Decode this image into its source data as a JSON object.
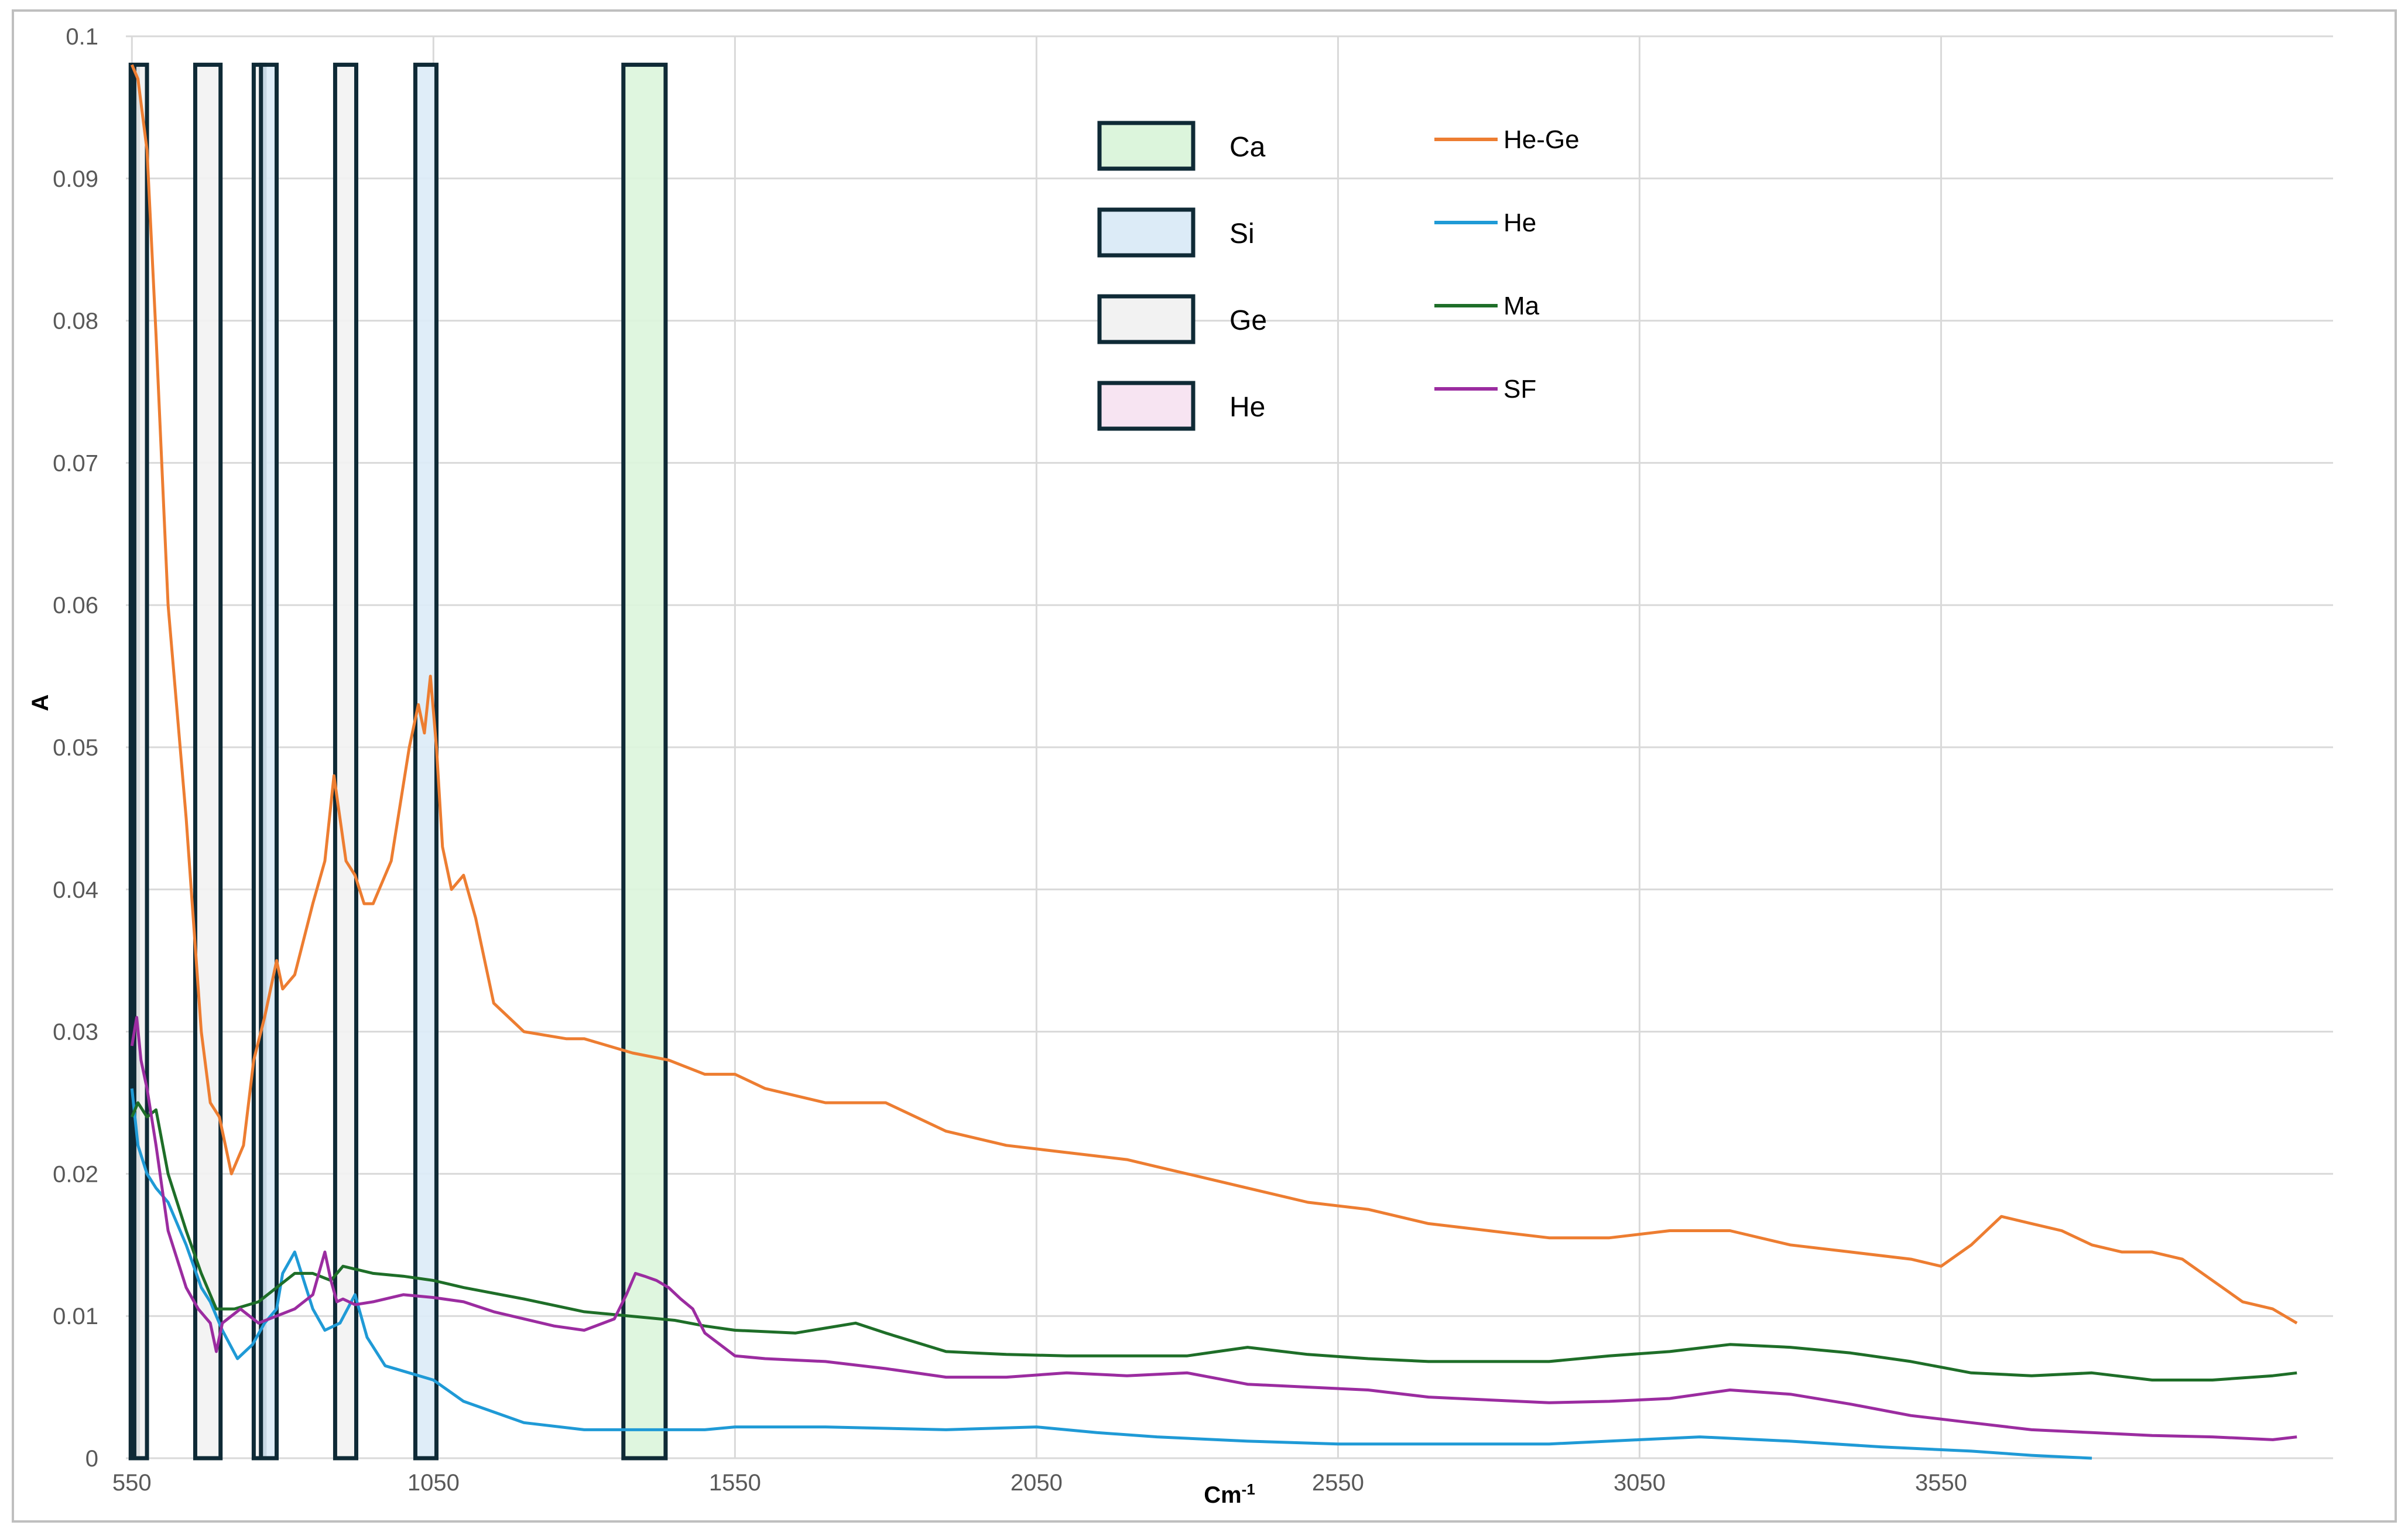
{
  "chart_data": {
    "type": "line",
    "xlabel": "Cm",
    "xlabel_sup": "-1",
    "ylabel": "A",
    "xlim": [
      540,
      4200
    ],
    "ylim": [
      0,
      0.1
    ],
    "x_ticks": [
      550,
      1050,
      1550,
      2050,
      2550,
      3050,
      3550
    ],
    "y_ticks": [
      0,
      0.01,
      0.02,
      0.03,
      0.04,
      0.05,
      0.06,
      0.07,
      0.08,
      0.09,
      0.1
    ],
    "y_tick_labels": [
      "0",
      "0.01",
      "0.02",
      "0.03",
      "0.04",
      "0.05",
      "0.06",
      "0.07",
      "0.08",
      "0.09",
      "0.1"
    ],
    "grid": true,
    "band_legend": [
      {
        "label": "Ca",
        "fill": "#dcf5dc"
      },
      {
        "label": "Si",
        "fill": "#dcebf7"
      },
      {
        "label": "Ge",
        "fill": "#f2f2f2"
      },
      {
        "label": "He",
        "fill": "#f7e4f2"
      }
    ],
    "bands": [
      {
        "group": "He",
        "x0": 548,
        "x1": 560,
        "top": 0.098
      },
      {
        "group": "Ge",
        "x0": 554,
        "x1": 575,
        "top": 0.098
      },
      {
        "group": "Ge",
        "x0": 655,
        "x1": 697,
        "top": 0.098
      },
      {
        "group": "Ge",
        "x0": 752,
        "x1": 770,
        "top": 0.098
      },
      {
        "group": "Si",
        "x0": 764,
        "x1": 790,
        "top": 0.098
      },
      {
        "group": "Ge",
        "x0": 887,
        "x1": 922,
        "top": 0.098
      },
      {
        "group": "Si",
        "x0": 1020,
        "x1": 1055,
        "top": 0.098
      },
      {
        "group": "Ca",
        "x0": 1365,
        "x1": 1435,
        "top": 0.098
      }
    ],
    "series": [
      {
        "name": "He-Ge",
        "color": "#ed7d31",
        "x": [
          550,
          560,
          575,
          590,
          610,
          640,
          665,
          680,
          695,
          705,
          715,
          735,
          752,
          770,
          780,
          790,
          800,
          820,
          850,
          870,
          885,
          895,
          905,
          920,
          935,
          950,
          980,
          1010,
          1025,
          1035,
          1045,
          1055,
          1065,
          1080,
          1100,
          1120,
          1150,
          1200,
          1270,
          1300,
          1380,
          1440,
          1500,
          1550,
          1600,
          1700,
          1800,
          1900,
          2000,
          2100,
          2200,
          2250,
          2300,
          2400,
          2500,
          2600,
          2700,
          2800,
          2900,
          3000,
          3100,
          3200,
          3300,
          3400,
          3500,
          3550,
          3600,
          3650,
          3700,
          3750,
          3800,
          3850,
          3900,
          3950,
          4000,
          4050,
          4100,
          4140
        ],
        "y": [
          0.098,
          0.097,
          0.092,
          0.079,
          0.06,
          0.045,
          0.03,
          0.025,
          0.024,
          0.022,
          0.02,
          0.022,
          0.028,
          0.031,
          0.033,
          0.035,
          0.033,
          0.034,
          0.039,
          0.042,
          0.048,
          0.045,
          0.042,
          0.041,
          0.039,
          0.039,
          0.042,
          0.05,
          0.053,
          0.051,
          0.055,
          0.05,
          0.043,
          0.04,
          0.041,
          0.038,
          0.032,
          0.03,
          0.0295,
          0.0295,
          0.0285,
          0.028,
          0.027,
          0.027,
          0.026,
          0.025,
          0.025,
          0.023,
          0.022,
          0.0215,
          0.021,
          0.0205,
          0.02,
          0.019,
          0.018,
          0.0175,
          0.0165,
          0.016,
          0.0155,
          0.0155,
          0.016,
          0.016,
          0.015,
          0.0145,
          0.014,
          0.0135,
          0.015,
          0.017,
          0.0165,
          0.016,
          0.015,
          0.0145,
          0.0145,
          0.014,
          0.0125,
          0.011,
          0.0105,
          0.0095
        ]
      },
      {
        "name": "He",
        "color": "#1f9ad6",
        "x": [
          550,
          560,
          575,
          590,
          610,
          640,
          665,
          680,
          700,
          725,
          750,
          770,
          790,
          800,
          820,
          850,
          870,
          895,
          920,
          940,
          970,
          1010,
          1050,
          1100,
          1200,
          1300,
          1400,
          1500,
          1550,
          1700,
          1900,
          2050,
          2150,
          2250,
          2400,
          2550,
          2700,
          2900,
          3050,
          3150,
          3300,
          3450,
          3600,
          3700,
          3750,
          3800
        ],
        "y": [
          0.026,
          0.022,
          0.02,
          0.019,
          0.018,
          0.015,
          0.012,
          0.011,
          0.009,
          0.007,
          0.008,
          0.0095,
          0.0105,
          0.013,
          0.0145,
          0.0105,
          0.009,
          0.0095,
          0.0115,
          0.0085,
          0.0065,
          0.006,
          0.0055,
          0.004,
          0.0025,
          0.002,
          0.002,
          0.002,
          0.0022,
          0.0022,
          0.002,
          0.0022,
          0.0018,
          0.0015,
          0.0012,
          0.001,
          0.001,
          0.001,
          0.0013,
          0.0015,
          0.0012,
          0.0008,
          0.0005,
          0.0002,
          0.0001,
          0.0
        ]
      },
      {
        "name": "Ma",
        "color": "#1e6e28",
        "x": [
          550,
          560,
          575,
          590,
          610,
          640,
          665,
          690,
          720,
          760,
          790,
          820,
          850,
          880,
          900,
          950,
          1000,
          1050,
          1100,
          1200,
          1300,
          1400,
          1450,
          1500,
          1550,
          1650,
          1750,
          1800,
          1900,
          2000,
          2100,
          2200,
          2300,
          2350,
          2400,
          2500,
          2600,
          2700,
          2800,
          2900,
          3000,
          3100,
          3200,
          3300,
          3400,
          3500,
          3550,
          3600,
          3700,
          3800,
          3900,
          4000,
          4100,
          4140
        ],
        "y": [
          0.024,
          0.025,
          0.024,
          0.0245,
          0.02,
          0.016,
          0.013,
          0.0105,
          0.0105,
          0.011,
          0.012,
          0.013,
          0.013,
          0.0125,
          0.0135,
          0.013,
          0.0128,
          0.0125,
          0.012,
          0.0112,
          0.0103,
          0.0099,
          0.0097,
          0.0093,
          0.009,
          0.0088,
          0.0095,
          0.0088,
          0.0075,
          0.0073,
          0.0072,
          0.0072,
          0.0072,
          0.0075,
          0.0078,
          0.0073,
          0.007,
          0.0068,
          0.0068,
          0.0068,
          0.0072,
          0.0075,
          0.008,
          0.0078,
          0.0074,
          0.0068,
          0.0064,
          0.006,
          0.0058,
          0.006,
          0.0055,
          0.0055,
          0.0058,
          0.006
        ]
      },
      {
        "name": "SF",
        "color": "#9b2ca0",
        "x": [
          550,
          558,
          565,
          575,
          590,
          610,
          640,
          660,
          680,
          690,
          700,
          730,
          760,
          790,
          820,
          850,
          870,
          880,
          890,
          900,
          920,
          950,
          1000,
          1050,
          1100,
          1150,
          1200,
          1250,
          1300,
          1350,
          1370,
          1385,
          1400,
          1420,
          1440,
          1460,
          1480,
          1500,
          1550,
          1600,
          1700,
          1800,
          1900,
          2000,
          2100,
          2200,
          2300,
          2400,
          2500,
          2600,
          2700,
          2800,
          2900,
          3000,
          3100,
          3200,
          3300,
          3400,
          3500,
          3600,
          3700,
          3800,
          3900,
          4000,
          4100,
          4140
        ],
        "y": [
          0.029,
          0.031,
          0.028,
          0.026,
          0.022,
          0.016,
          0.012,
          0.0105,
          0.0095,
          0.0075,
          0.0095,
          0.0105,
          0.0095,
          0.01,
          0.0105,
          0.0115,
          0.0145,
          0.0125,
          0.011,
          0.0112,
          0.0108,
          0.011,
          0.0115,
          0.0113,
          0.011,
          0.0103,
          0.0098,
          0.0093,
          0.009,
          0.0098,
          0.0115,
          0.013,
          0.0128,
          0.0125,
          0.012,
          0.0112,
          0.0105,
          0.0088,
          0.0072,
          0.007,
          0.0068,
          0.0063,
          0.0057,
          0.0057,
          0.006,
          0.0058,
          0.006,
          0.0052,
          0.005,
          0.0048,
          0.0043,
          0.0041,
          0.0039,
          0.004,
          0.0042,
          0.0048,
          0.0045,
          0.0038,
          0.003,
          0.0025,
          0.002,
          0.0018,
          0.0016,
          0.0015,
          0.0013,
          0.0015
        ]
      }
    ]
  }
}
